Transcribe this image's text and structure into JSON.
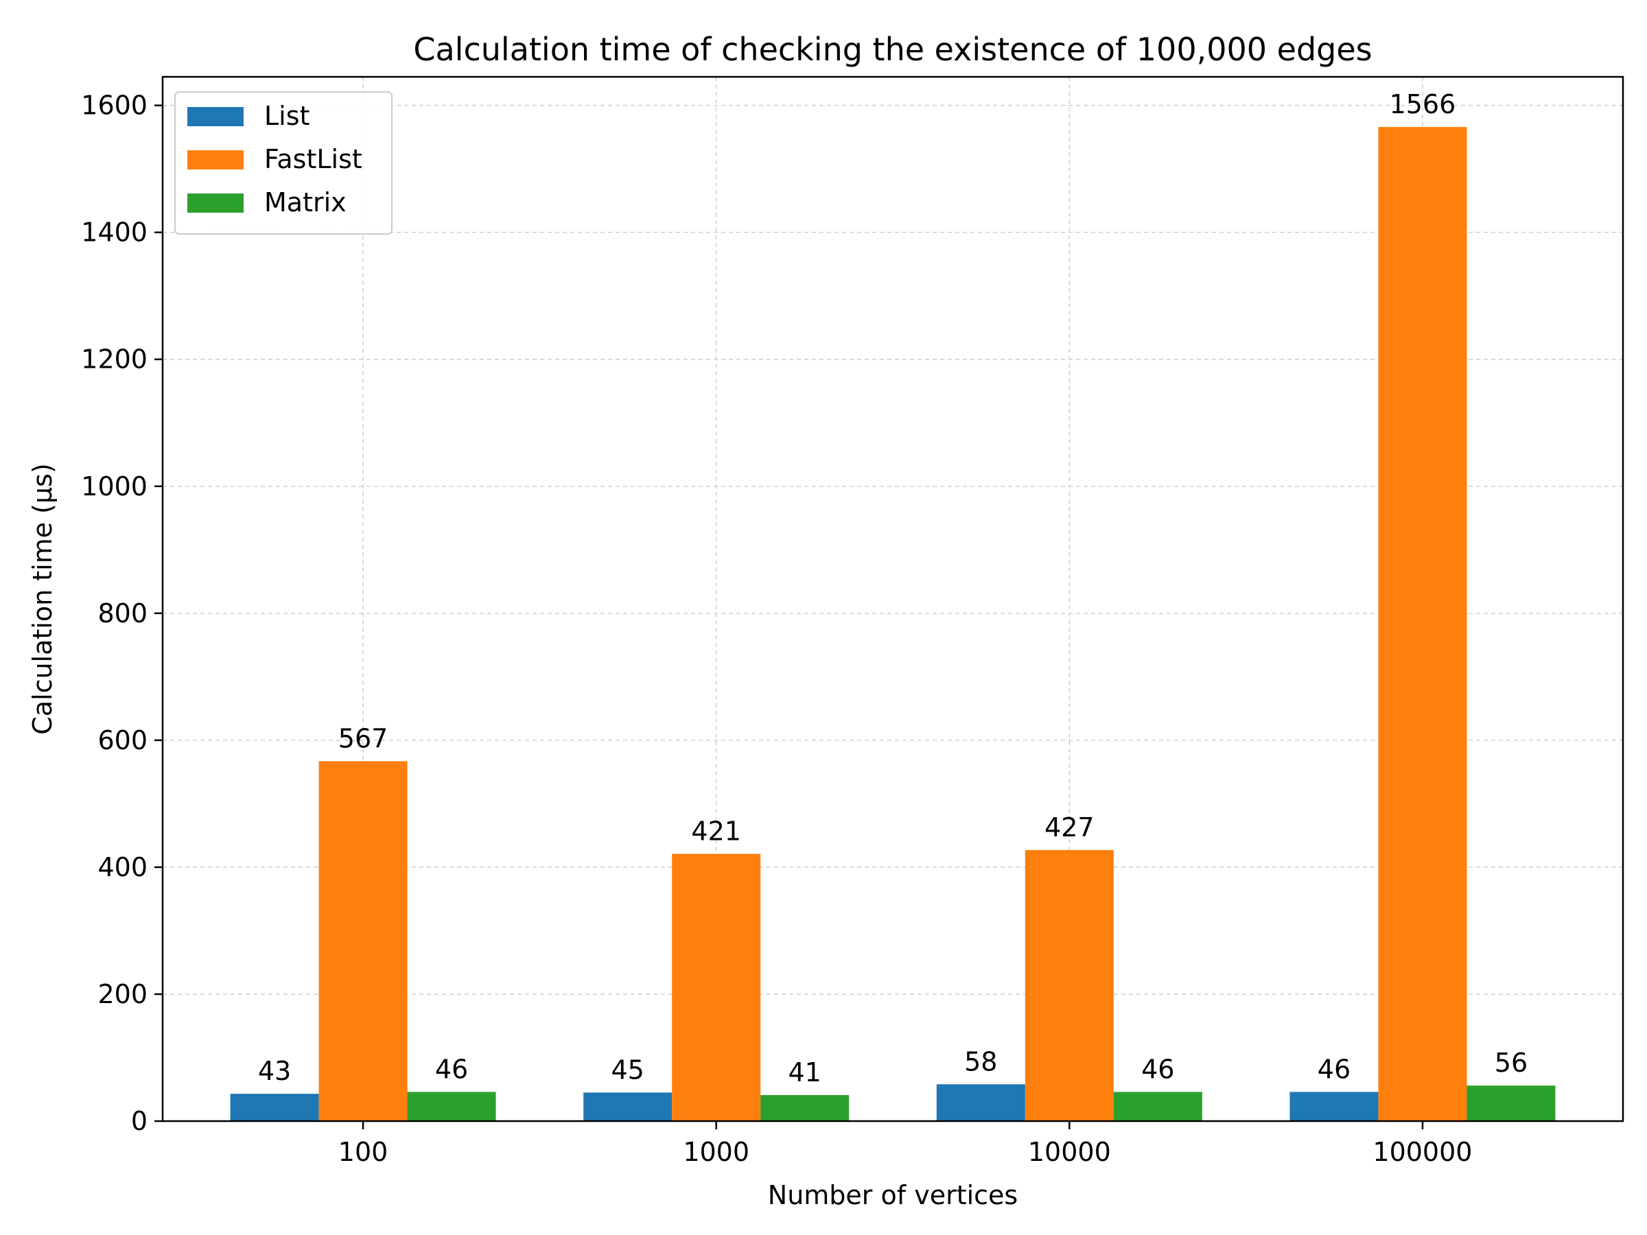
{
  "chart_data": {
    "type": "bar",
    "title": "Calculation time of checking the existence of 100,000 edges",
    "xlabel": "Number of vertices",
    "ylabel": "Calculation time (μs)",
    "categories": [
      "100",
      "1000",
      "10000",
      "100000"
    ],
    "series": [
      {
        "name": "List",
        "values": [
          43,
          45,
          58,
          46
        ],
        "color": "#1f77b4"
      },
      {
        "name": "FastList",
        "values": [
          567,
          421,
          427,
          1566
        ],
        "color": "#ff7f0e"
      },
      {
        "name": "Matrix",
        "values": [
          46,
          41,
          46,
          56
        ],
        "color": "#2ca02c"
      }
    ],
    "ylim": [
      0,
      1645
    ],
    "yticks": [
      0,
      200,
      400,
      600,
      800,
      1000,
      1200,
      1400,
      1600
    ],
    "grid": true,
    "legend": "top-left",
    "data_labels": true
  }
}
